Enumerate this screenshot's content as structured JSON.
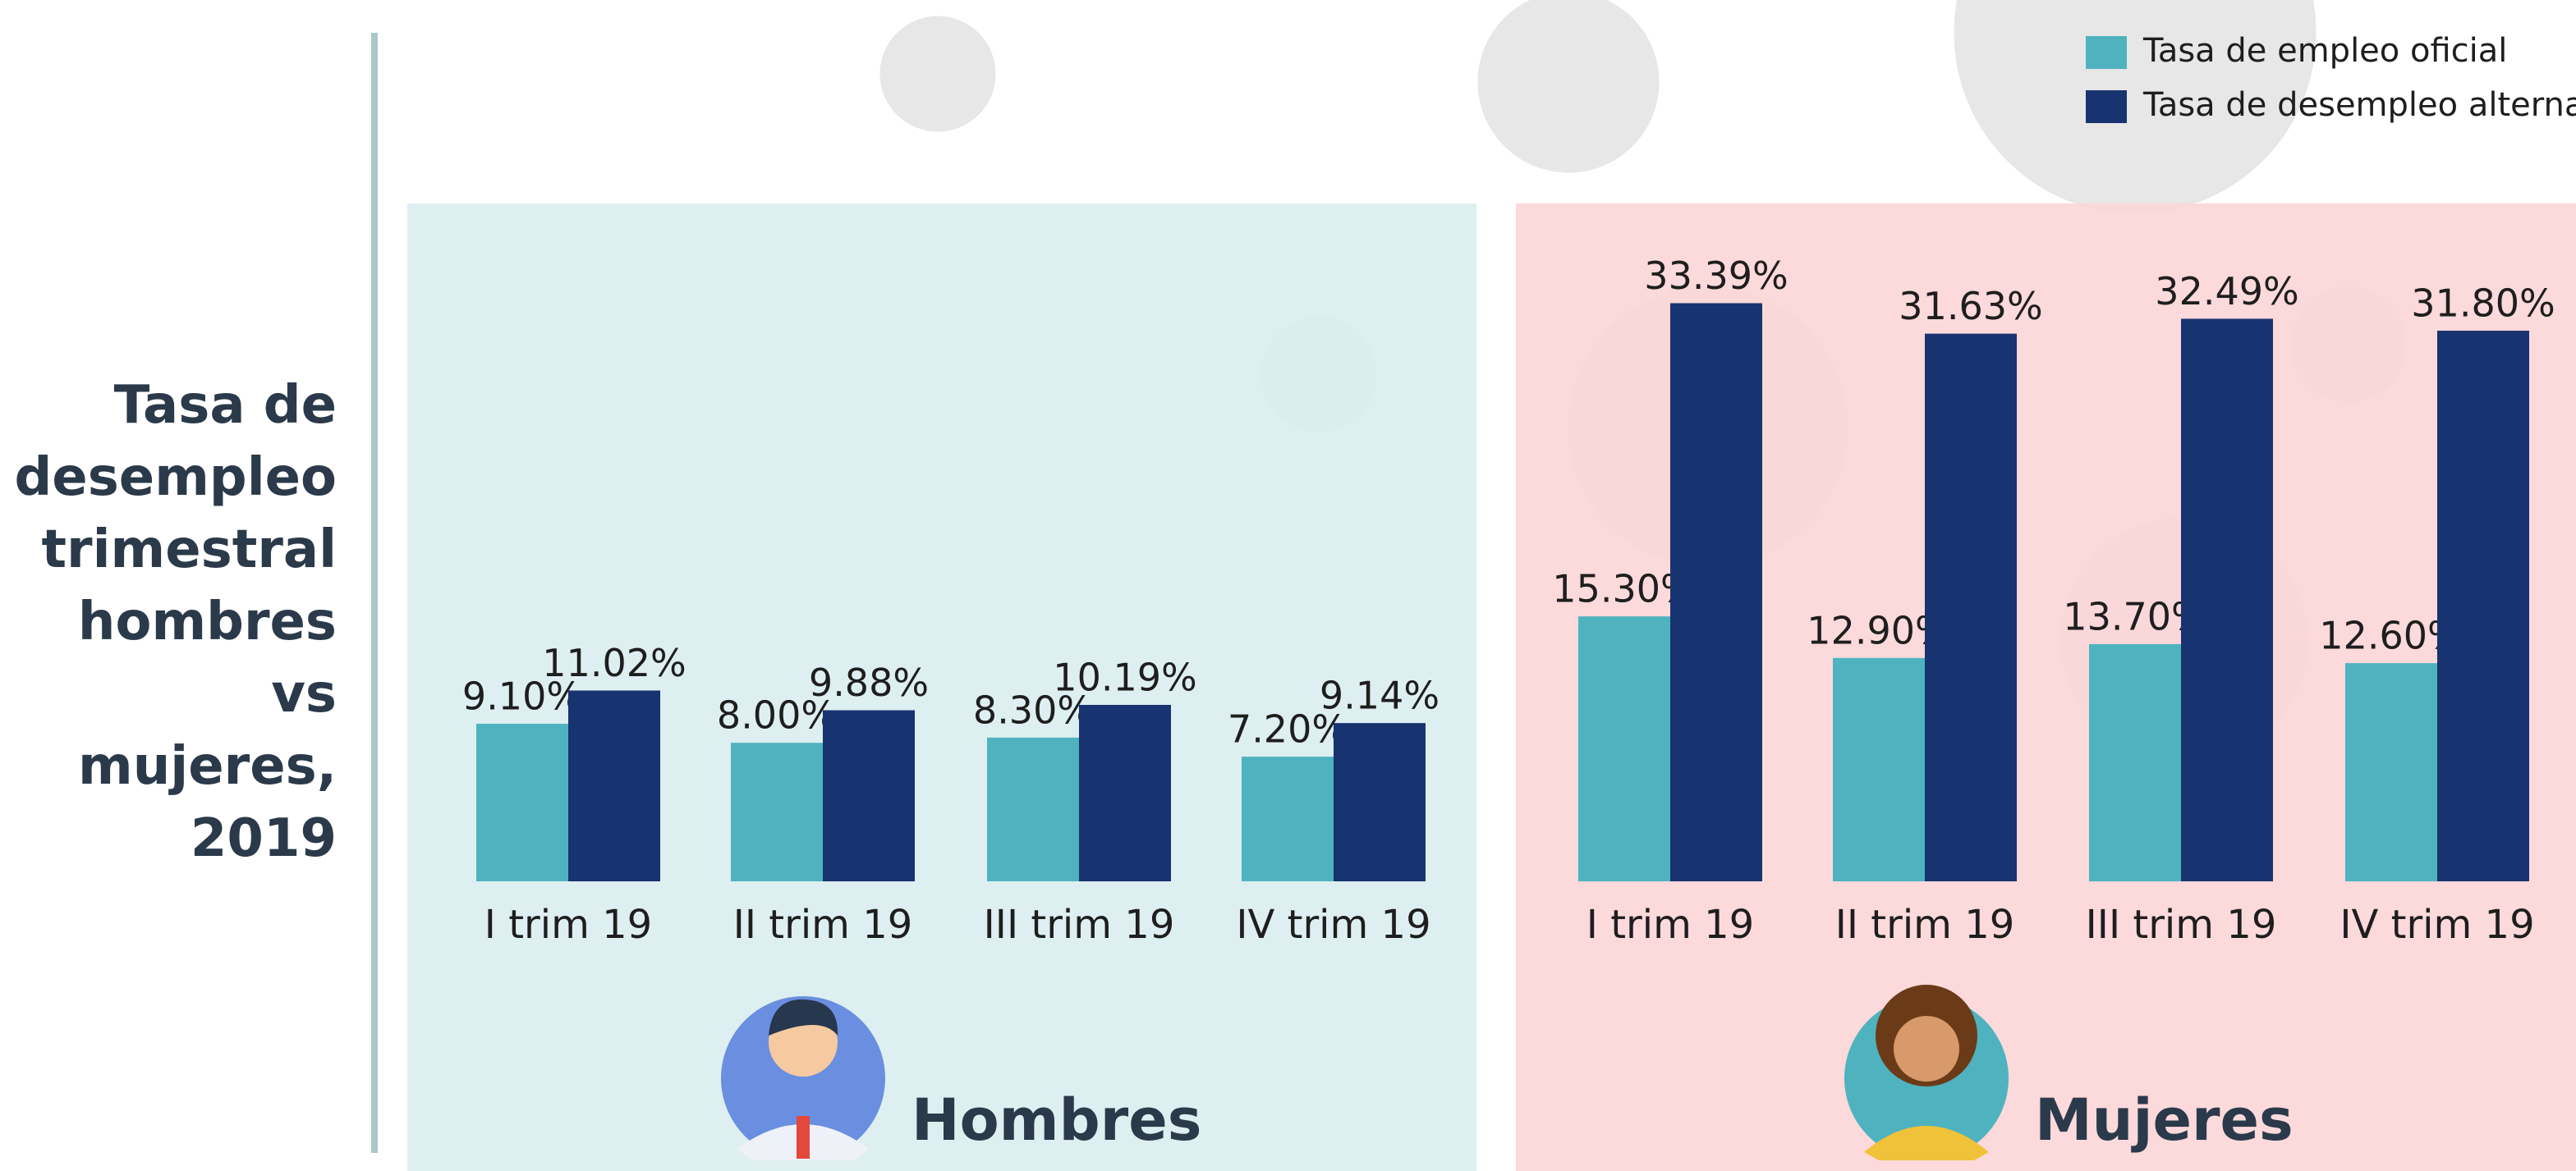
{
  "title": "Tasa de desempleo trimestral hombres vs mujeres, 2019",
  "chart_data": [
    {
      "type": "bar",
      "label": "Hombres",
      "categories": [
        "I trim 19",
        "II trim 19",
        "III trim 19",
        "IV trim 19"
      ],
      "series": [
        {
          "name": "Tasa de empleo oficial",
          "color": "#4fb3bf",
          "values": [
            9.1,
            8.0,
            8.3,
            7.2
          ],
          "value_labels": [
            "9.10%",
            "8.00%",
            "8.30%",
            "7.20%"
          ]
        },
        {
          "name": "Tasa de desempleo alterna",
          "color": "#173370",
          "values": [
            11.02,
            9.88,
            10.19,
            9.14
          ],
          "value_labels": [
            "11.02%",
            "9.88%",
            "10.19%",
            "9.14%"
          ]
        }
      ]
    },
    {
      "type": "bar",
      "label": "Mujeres",
      "categories": [
        "I trim 19",
        "II trim 19",
        "III trim 19",
        "IV trim 19"
      ],
      "series": [
        {
          "color": "#4fb3bf",
          "values": [
            15.3,
            12.9,
            13.7,
            12.6
          ],
          "value_labels": [
            "15.30%",
            "12.90%",
            "13.70%",
            "12.60%"
          ]
        },
        {
          "color": "#173370",
          "values": [
            33.39,
            31.63,
            32.49,
            31.8
          ],
          "value_labels": [
            "33.39%",
            "31.63%",
            "32.49%",
            "31.80%"
          ]
        }
      ]
    }
  ]
}
